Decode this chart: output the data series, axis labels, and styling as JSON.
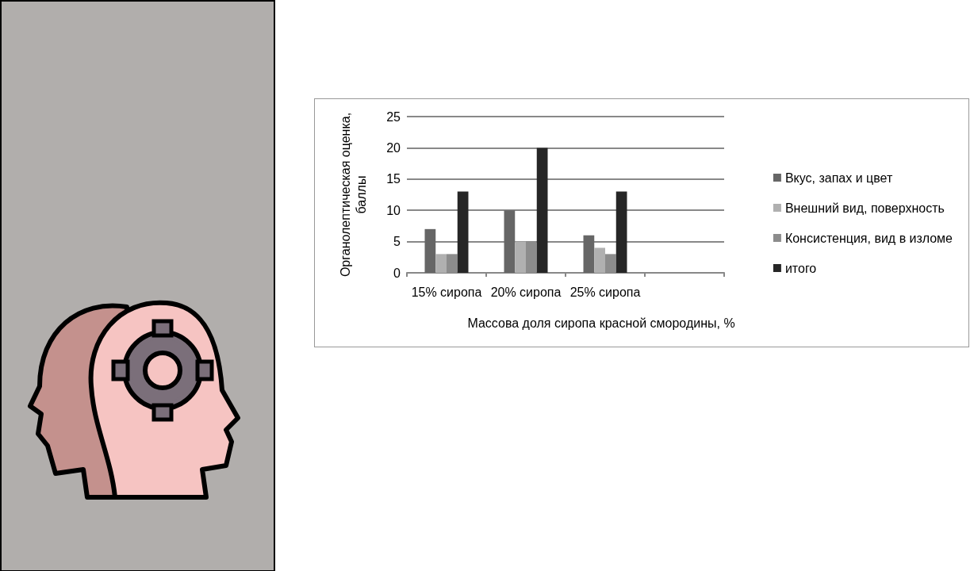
{
  "chart_data": {
    "type": "bar",
    "xlabel": "Массова доля сиропа красной смородины, %",
    "ylabel": "Органолептическая оценка, баллы",
    "categories": [
      "15% сиропа",
      "20% сиропа",
      "25% сиропа",
      null
    ],
    "series": [
      {
        "name": "Вкус, запах и цвет",
        "color": "#666666",
        "values": [
          7,
          10,
          6,
          null
        ]
      },
      {
        "name": "Внешний вид, поверхность",
        "color": "#b0b0b0",
        "values": [
          3,
          5,
          4,
          null
        ]
      },
      {
        "name": "Консистенция, вид в изломе",
        "color": "#8c8c8c",
        "values": [
          3,
          5,
          3,
          null
        ]
      },
      {
        "name": "итого",
        "color": "#262626",
        "values": [
          13,
          20,
          13,
          null
        ]
      }
    ],
    "ylim": [
      0,
      25
    ],
    "yticks": [
      0,
      5,
      10,
      15,
      20,
      25
    ],
    "grid": "y",
    "legend": "right"
  }
}
